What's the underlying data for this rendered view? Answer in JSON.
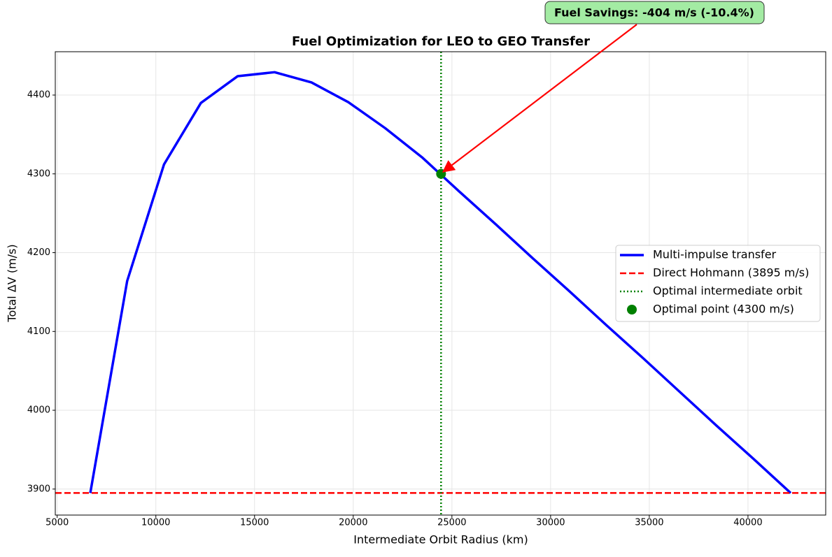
{
  "chart_data": {
    "type": "line",
    "title": "Fuel Optimization for LEO to GEO Transfer",
    "x_label": "Intermediate Orbit Radius (km)",
    "y_label": "Total ΔV (m/s)",
    "x": [
      6678,
      8546,
      10413,
      12281,
      14148,
      16016,
      17884,
      19751,
      21619,
      23486,
      25354,
      27221,
      29089,
      30956,
      32824,
      34691,
      36559,
      38426,
      40294,
      42164
    ],
    "series": [
      {
        "name": "Multi-impulse transfer",
        "color": "#0000ff",
        "values": [
          3895,
          4164,
          4312,
          4390,
          4424,
          4429,
          4416,
          4391,
          4358,
          4321,
          4278,
          4236,
          4193,
          4151,
          4108,
          4066,
          4023,
          3980,
          3938,
          3895
        ]
      }
    ],
    "reference_lines": [
      {
        "name": "Direct Hohmann (3895 m/s)",
        "color": "#ff0000",
        "y": 3895
      },
      {
        "name": "Optimal intermediate orbit",
        "color": "#008000",
        "x": 24450
      }
    ],
    "points": [
      {
        "name": "Optimal point (4300 m/s)",
        "color": "#008000",
        "x": 24450,
        "y": 4300
      }
    ],
    "annotation": {
      "text": "Fuel Savings: -404 m/s (-10.4%)",
      "x": 24450,
      "y": 4300
    },
    "xlim": [
      4904,
      43938
    ],
    "ylim": [
      3867,
      4455
    ],
    "xticks": [
      5000,
      10000,
      15000,
      20000,
      25000,
      30000,
      35000,
      40000
    ],
    "yticks": [
      3900,
      4000,
      4100,
      4200,
      4300,
      4400
    ],
    "grid": true,
    "legend": "right"
  }
}
